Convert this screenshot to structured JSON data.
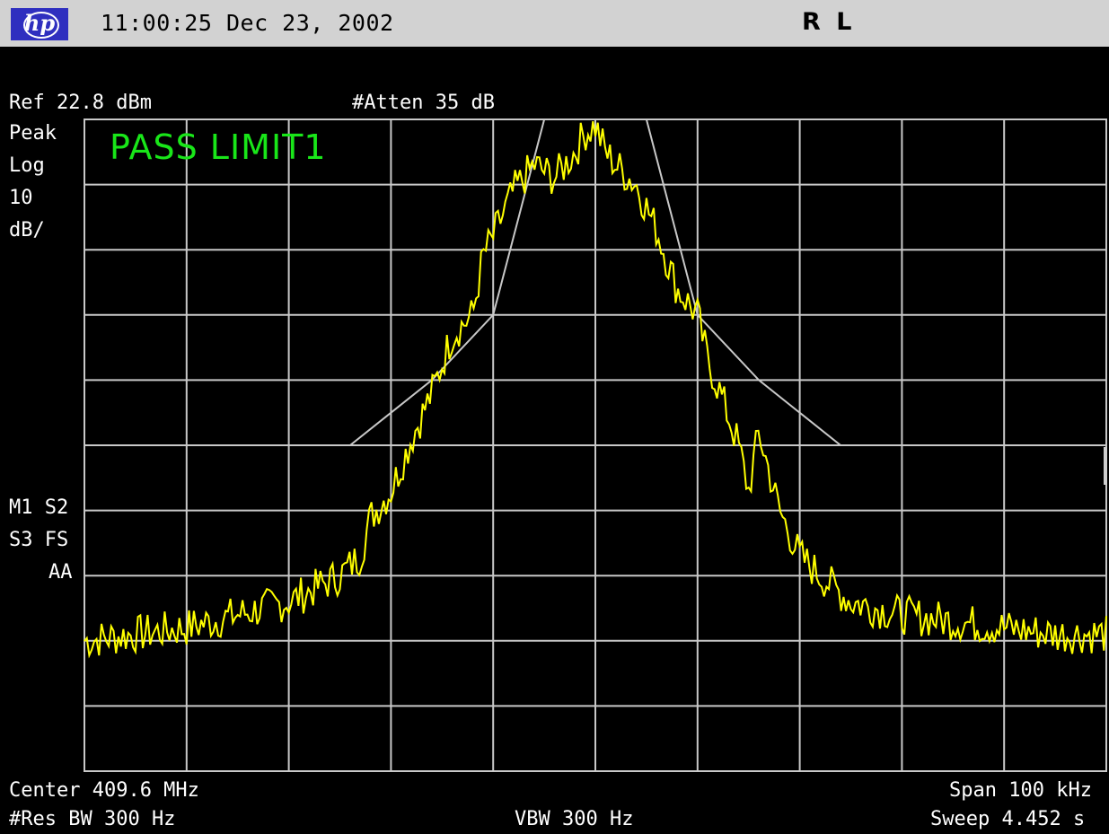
{
  "header": {
    "logo_text": "hp",
    "timestamp": "11:00:25  Dec 23, 2002",
    "remote_status": "R L"
  },
  "annotations": {
    "ref_level": "Ref 22.8 dBm",
    "attenuation": "#Atten 35 dB",
    "detector": "Peak",
    "scale_type": "Log",
    "scale_value": "10",
    "scale_unit": "dB/",
    "marker_flags_1": "M1  S2",
    "marker_flags_2": "S3  FS",
    "marker_flags_3": "AA",
    "limit_status": "PASS LIMIT1",
    "center_freq": "Center 409.6 MHz",
    "span": "Span 100 kHz",
    "res_bw": "#Res BW 300 Hz",
    "vbw": "VBW 300 Hz",
    "sweep": "Sweep 4.452 s"
  },
  "colors": {
    "trace": "#ffff00",
    "limit_line": "#c8c8c8",
    "graticule": "#c8c8c8",
    "pass_text": "#19e619",
    "titlebar": "#d2d2d2",
    "logo": "#2f2fbf"
  },
  "chart_data": {
    "type": "line",
    "x_unit": "kHz offset from center",
    "y_unit": "dB below reference level",
    "xlim": [
      -50,
      50
    ],
    "ylim": [
      -100,
      0
    ],
    "grid": true,
    "series": [
      {
        "x": [
          -50,
          -45,
          -40,
          -35,
          -30,
          -25,
          -23,
          -22,
          -20,
          -18,
          -16,
          -14,
          -12,
          -11,
          -10,
          -8,
          -6,
          -4,
          -2,
          -1,
          0,
          1,
          2,
          4,
          6,
          8,
          10,
          11,
          12,
          14,
          15,
          16,
          18,
          20,
          22,
          25,
          30,
          35,
          40,
          45,
          50
        ],
        "y": [
          -80,
          -79,
          -78,
          -76,
          -74,
          -70,
          -67,
          -61,
          -57,
          -49,
          -42,
          -33,
          -30,
          -21,
          -18,
          -11,
          -7,
          -9,
          -5,
          -2,
          -1,
          -5,
          -7,
          -10,
          -17,
          -26,
          -30,
          -37,
          -41,
          -50,
          -57,
          -48,
          -60,
          -67,
          -70,
          -74,
          -76,
          -77,
          -78,
          -79,
          -79
        ]
      },
      {
        "x": [
          -24,
          -20,
          -16,
          -10,
          -5,
          5,
          10,
          16,
          20,
          24
        ],
        "y": [
          -50,
          -45,
          -40,
          -30,
          0,
          0,
          -30,
          -40,
          -45,
          -50
        ]
      }
    ]
  }
}
